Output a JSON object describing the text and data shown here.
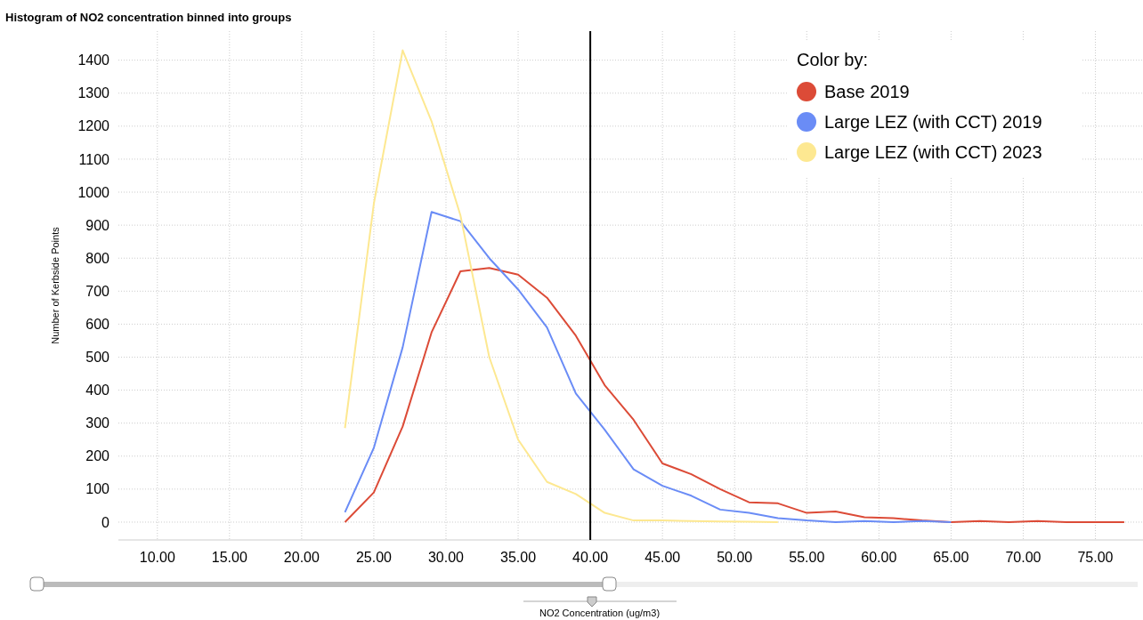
{
  "chart_data": {
    "type": "line",
    "title": "Histogram of NO2 concentration binned into groups",
    "xlabel": "NO2 Concentration (ug/m3)",
    "ylabel": "Number of Kerbside Points",
    "legend_title": "Color by:",
    "legend": "top right",
    "grid": true,
    "marker": "none",
    "line_style": "solid",
    "xlim": [
      7.3,
      78.3
    ],
    "xticks": [
      {
        "value": 10,
        "label": "10.00"
      },
      {
        "value": 15,
        "label": "15.00"
      },
      {
        "value": 20,
        "label": "20.00"
      },
      {
        "value": 25,
        "label": "25.00"
      },
      {
        "value": 30,
        "label": "30.00"
      },
      {
        "value": 35,
        "label": "35.00"
      },
      {
        "value": 40,
        "label": "40.00"
      },
      {
        "value": 45,
        "label": "45.00"
      },
      {
        "value": 50,
        "label": "50.00"
      },
      {
        "value": 55,
        "label": "55.00"
      },
      {
        "value": 60,
        "label": "60.00"
      },
      {
        "value": 65,
        "label": "65.00"
      },
      {
        "value": 70,
        "label": "70.00"
      },
      {
        "value": 75,
        "label": "75.00"
      }
    ],
    "ylim": [
      -54,
      1488
    ],
    "yticks": [
      0,
      100,
      200,
      300,
      400,
      500,
      600,
      700,
      800,
      900,
      1000,
      1100,
      1200,
      1300,
      1400
    ],
    "ref_lines": [
      {
        "axis": "x",
        "value": 40,
        "color": "#000000"
      }
    ],
    "series": [
      {
        "name": "Base 2019",
        "color": "#dc4b37",
        "x": [
          23,
          25,
          27,
          29,
          31,
          33,
          35,
          37,
          39,
          41,
          43,
          45,
          47,
          49,
          51,
          53,
          55,
          57,
          59,
          61,
          63,
          65,
          67,
          69,
          71,
          73,
          75,
          77
        ],
        "values": [
          0,
          90,
          290,
          575,
          760,
          770,
          750,
          680,
          565,
          415,
          310,
          178,
          145,
          100,
          60,
          57,
          28,
          32,
          15,
          12,
          5,
          0,
          3,
          0,
          3,
          0,
          0,
          0
        ]
      },
      {
        "name": "Large LEZ (with CCT) 2019",
        "color": "#6a8cf6",
        "x": [
          23,
          25,
          27,
          29,
          31,
          33,
          35,
          37,
          39,
          41,
          43,
          45,
          47,
          49,
          51,
          53,
          55,
          57,
          59,
          61,
          63,
          65
        ],
        "values": [
          30,
          225,
          530,
          940,
          912,
          800,
          705,
          590,
          390,
          280,
          160,
          110,
          80,
          38,
          28,
          12,
          5,
          0,
          3,
          0,
          3,
          0
        ]
      },
      {
        "name": "Large LEZ (with CCT) 2023",
        "color": "#fde891",
        "x": [
          23,
          25,
          27,
          29,
          31,
          33,
          35,
          37,
          39,
          41,
          43,
          45,
          47,
          49,
          51,
          53
        ],
        "values": [
          285,
          965,
          1430,
          1215,
          930,
          500,
          250,
          122,
          85,
          28,
          5,
          5,
          3,
          2,
          1,
          0
        ]
      }
    ]
  }
}
